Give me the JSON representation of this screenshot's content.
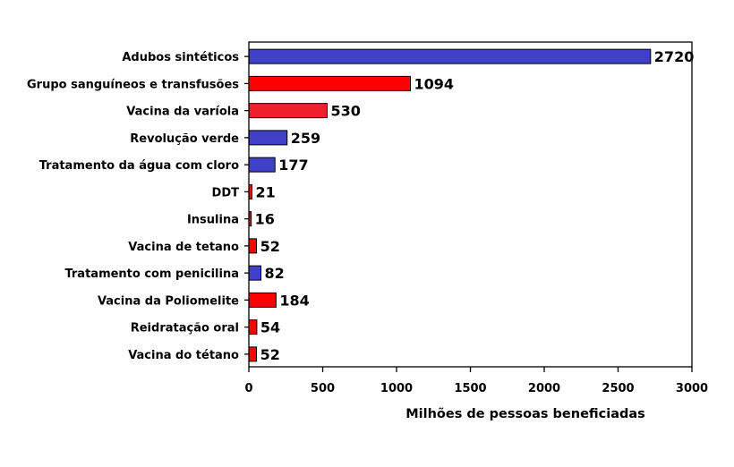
{
  "chart_data": {
    "type": "bar",
    "orientation": "horizontal",
    "title": "",
    "xlabel": "Milhões de pessoas beneficiadas",
    "ylabel": "",
    "xlim": [
      0,
      3000
    ],
    "xticks": [
      "0",
      "500",
      "1000",
      "1500",
      "2000",
      "2500",
      "3000"
    ],
    "grid": false,
    "legend": "none",
    "categories": [
      "Adubos sintéticos",
      "Grupo sanguíneos e transfusões",
      "Vacina da varíola",
      "Revolução verde",
      "Tratamento da água com cloro",
      "DDT",
      "Insulina",
      "Vacina de tetano",
      "Tratamento com penicilina",
      "Vacina da Poliomelite",
      "Reidratação oral",
      "Vacina do tétano"
    ],
    "values": [
      2720,
      1094,
      530,
      259,
      177,
      21,
      16,
      52,
      82,
      184,
      54,
      52
    ],
    "value_labels": [
      "2720",
      "1094",
      "530",
      "259",
      "177",
      "21",
      "16",
      "52",
      "82",
      "184",
      "54",
      "52"
    ],
    "bar_colors": [
      "#4040C8",
      "#FF0000",
      "#EE2030",
      "#4040C8",
      "#4040C8",
      "#FF0000",
      "#FF0000",
      "#FF0000",
      "#4040C8",
      "#FF0000",
      "#FF0000",
      "#FF0000"
    ]
  }
}
